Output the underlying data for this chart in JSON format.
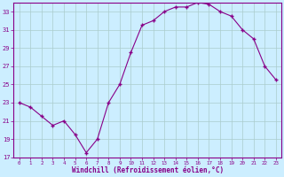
{
  "x": [
    0,
    1,
    2,
    3,
    4,
    5,
    6,
    7,
    8,
    9,
    10,
    11,
    12,
    13,
    14,
    15,
    16,
    17,
    18,
    19,
    20,
    21,
    22,
    23
  ],
  "y": [
    23,
    22.5,
    21.5,
    20.5,
    21,
    19.5,
    17.5,
    19,
    23,
    25,
    28.5,
    31.5,
    32,
    33,
    33.5,
    33.5,
    34,
    33.8,
    33,
    32.5,
    31,
    30,
    27,
    25.5
  ],
  "line_color": "#880088",
  "marker": "+",
  "marker_color": "#880088",
  "bg_color": "#cceeff",
  "grid_color": "#aacccc",
  "xlabel": "Windchill (Refroidissement éolien,°C)",
  "xlabel_color": "#880088",
  "tick_color": "#880088",
  "ylim": [
    17,
    34
  ],
  "yticks": [
    17,
    19,
    21,
    23,
    25,
    27,
    29,
    31,
    33
  ],
  "xlim": [
    -0.5,
    23.5
  ],
  "xticks": [
    0,
    1,
    2,
    3,
    4,
    5,
    6,
    7,
    8,
    9,
    10,
    11,
    12,
    13,
    14,
    15,
    16,
    17,
    18,
    19,
    20,
    21,
    22,
    23
  ]
}
